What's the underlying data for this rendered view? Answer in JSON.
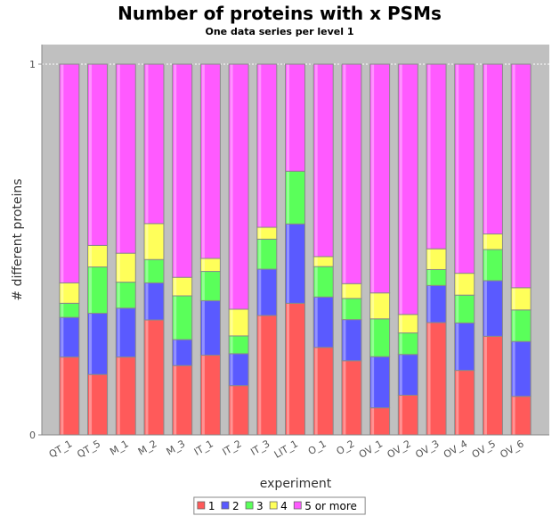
{
  "chart_data": {
    "type": "bar",
    "stacked": true,
    "title": "Number of proteins with x PSMs",
    "subtitle": "One data series per level 1",
    "xlabel": "experiment",
    "ylabel": "# different proteins",
    "ylim": [
      0,
      1
    ],
    "y_ticks": [
      "0",
      "1"
    ],
    "grid": false,
    "legend_position": "bottom",
    "categories": [
      "QT_1",
      "QT_5",
      "M_1",
      "M_2",
      "M_3",
      "IT_1",
      "IT_2",
      "IT_3",
      "LIT_1",
      "O_1",
      "O_2",
      "OV_1",
      "OV_2",
      "OV_3",
      "OV_4",
      "OV_5",
      "OV_6"
    ],
    "series": [
      {
        "name": "1",
        "color": "#ff5a5a",
        "values": [
          0.21,
          0.163,
          0.21,
          0.31,
          0.187,
          0.215,
          0.133,
          0.322,
          0.355,
          0.236,
          0.2,
          0.073,
          0.107,
          0.303,
          0.174,
          0.266,
          0.104
        ]
      },
      {
        "name": "2",
        "color": "#5a5aff",
        "values": [
          0.107,
          0.165,
          0.132,
          0.1,
          0.07,
          0.147,
          0.086,
          0.125,
          0.214,
          0.136,
          0.111,
          0.138,
          0.11,
          0.1,
          0.128,
          0.15,
          0.148
        ]
      },
      {
        "name": "3",
        "color": "#5aff5a",
        "values": [
          0.038,
          0.125,
          0.07,
          0.063,
          0.118,
          0.079,
          0.048,
          0.081,
          0.142,
          0.082,
          0.057,
          0.102,
          0.058,
          0.043,
          0.075,
          0.084,
          0.085
        ]
      },
      {
        "name": "4",
        "color": "#ffff5a",
        "values": [
          0.055,
          0.058,
          0.078,
          0.097,
          0.05,
          0.035,
          0.072,
          0.032,
          0.0,
          0.027,
          0.04,
          0.07,
          0.05,
          0.056,
          0.059,
          0.042,
          0.06
        ]
      },
      {
        "name": "5 or more",
        "color": "#ff5aff",
        "values": [
          0.59,
          0.489,
          0.51,
          0.43,
          0.575,
          0.524,
          0.661,
          0.44,
          0.289,
          0.519,
          0.592,
          0.617,
          0.675,
          0.498,
          0.564,
          0.458,
          0.603
        ]
      }
    ]
  },
  "colors": {
    "plot_background": "#c0c0c0",
    "page_background": "#ffffff"
  }
}
